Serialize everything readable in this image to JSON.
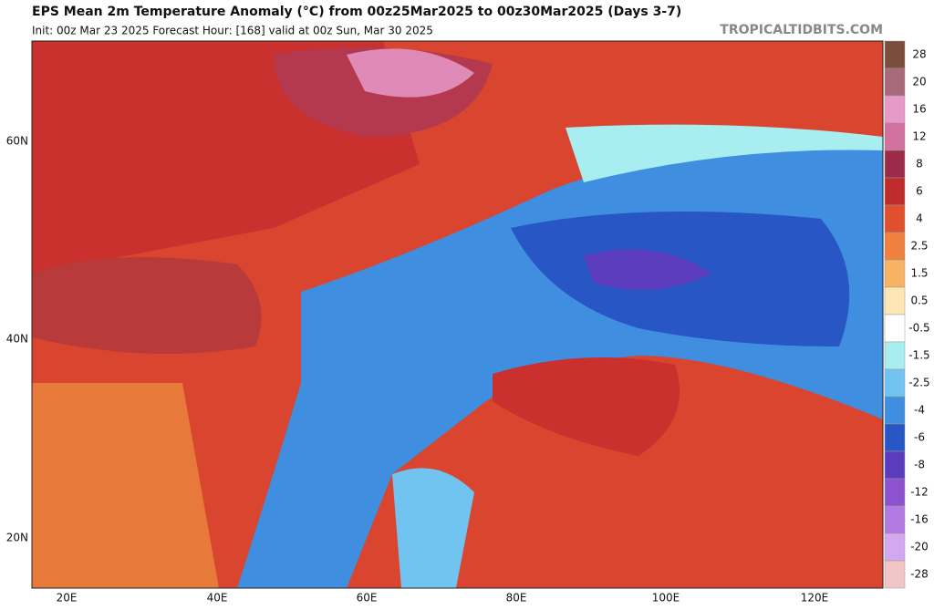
{
  "header": {
    "title": "EPS Mean 2m Temperature Anomaly (°C) from 00z25Mar2025 to 00z30Mar2025 (Days 3-7)",
    "subtitle": "Init: 00z Mar 23 2025   Forecast Hour: [168]   valid at 00z Sun, Mar 30 2025",
    "watermark": "TROPICALTIDBITS.COM"
  },
  "lat_labels": [
    "60N",
    "40N",
    "20N"
  ],
  "lon_labels": [
    "20E",
    "40E",
    "60E",
    "80E",
    "100E",
    "120E"
  ],
  "colorbar": [
    {
      "label": "28",
      "color": "#7b4e3c"
    },
    {
      "label": "20",
      "color": "#a8697a"
    },
    {
      "label": "16",
      "color": "#e79ac8"
    },
    {
      "label": "12",
      "color": "#d2709e"
    },
    {
      "label": "8",
      "color": "#9c2b4a"
    },
    {
      "label": "6",
      "color": "#bf2c2c"
    },
    {
      "label": "4",
      "color": "#e0502e"
    },
    {
      "label": "2.5",
      "color": "#f0803e"
    },
    {
      "label": "1.5",
      "color": "#f8b264"
    },
    {
      "label": "0.5",
      "color": "#fde6b4"
    },
    {
      "label": "-0.5",
      "color": "#ffffff"
    },
    {
      "label": "-1.5",
      "color": "#a8eef0"
    },
    {
      "label": "-2.5",
      "color": "#72c4f0"
    },
    {
      "label": "-4",
      "color": "#3f8ee0"
    },
    {
      "label": "-6",
      "color": "#2856c4"
    },
    {
      "label": "-8",
      "color": "#5a3cbc"
    },
    {
      "label": "-12",
      "color": "#8c52d0"
    },
    {
      "label": "-16",
      "color": "#b27ae2"
    },
    {
      "label": "-20",
      "color": "#d4a8f0"
    },
    {
      "label": "-28",
      "color": "#f2c6c6"
    }
  ]
}
